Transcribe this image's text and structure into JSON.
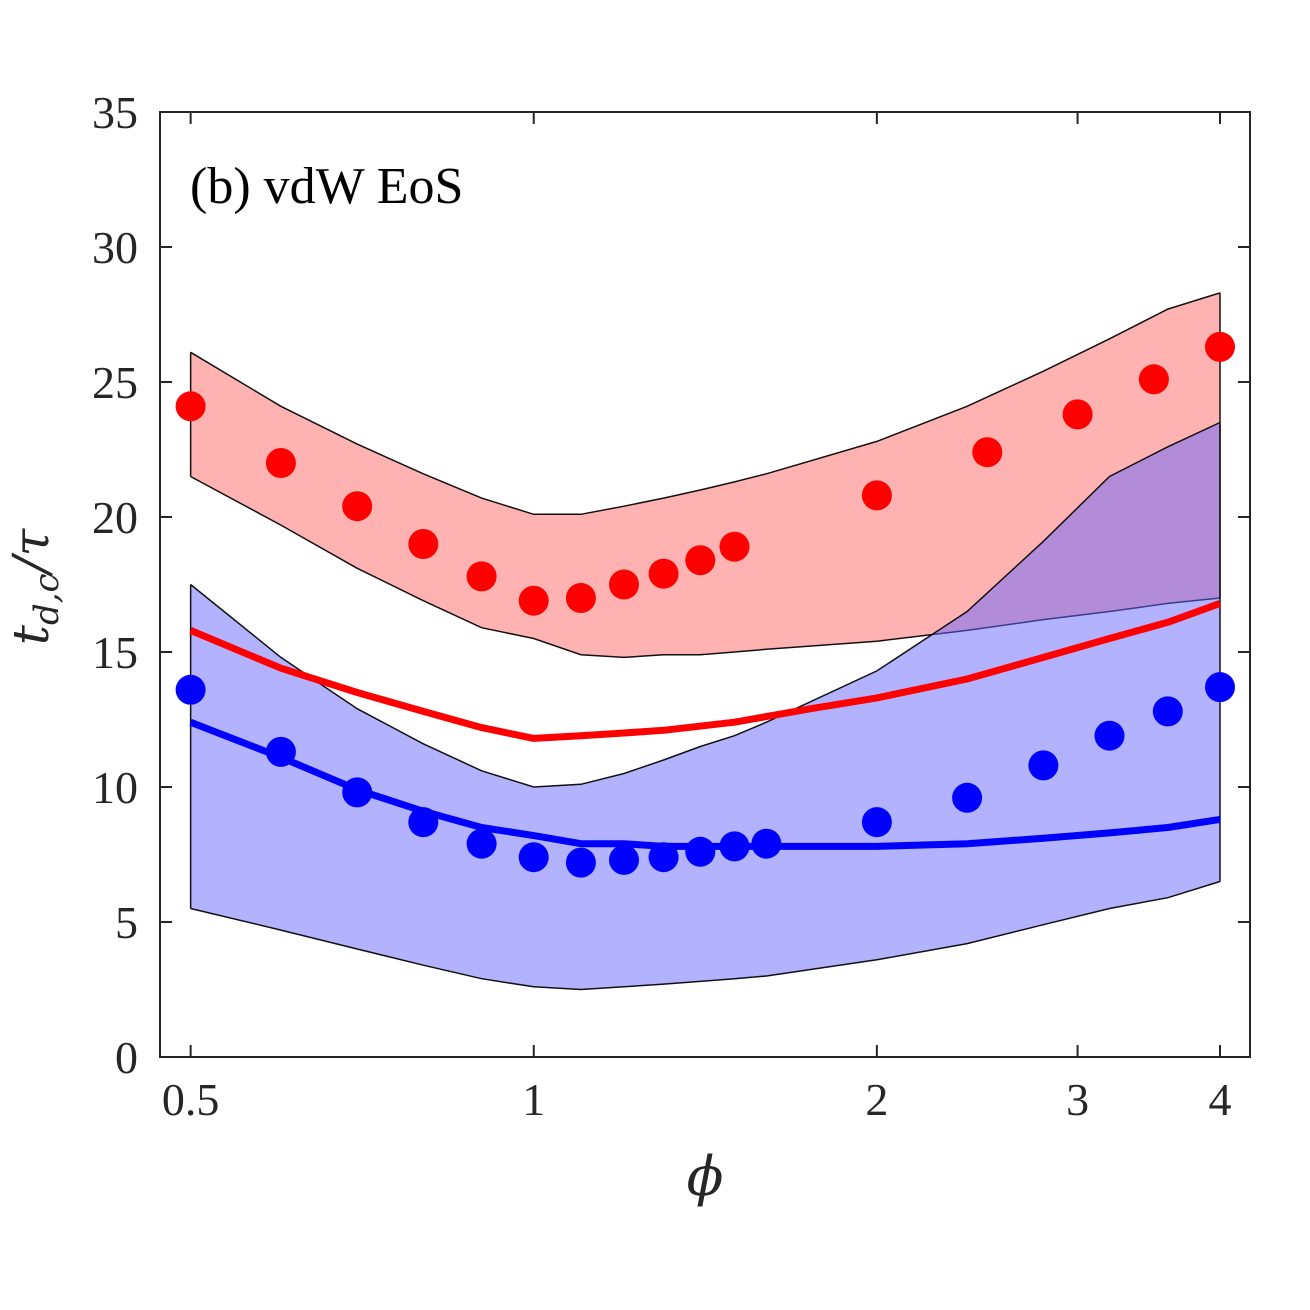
{
  "chart_data": {
    "type": "scatter",
    "annotation": "(b) vdW EoS",
    "xlabel": "ϕ",
    "ylabel_parts": {
      "main": "t",
      "sub": "d,c",
      "tail": "/τ"
    },
    "xscale": "log",
    "xlim": [
      0.47,
      4.25
    ],
    "ylim": [
      0,
      35
    ],
    "xticks": [
      {
        "value": 0.5,
        "label": "0.5"
      },
      {
        "value": 1,
        "label": "1"
      },
      {
        "value": 2,
        "label": "2"
      },
      {
        "value": 3,
        "label": "3"
      },
      {
        "value": 4,
        "label": "4"
      }
    ],
    "yticks": [
      {
        "value": 0,
        "label": "0"
      },
      {
        "value": 5,
        "label": "5"
      },
      {
        "value": 10,
        "label": "10"
      },
      {
        "value": 15,
        "label": "15"
      },
      {
        "value": 20,
        "label": "20"
      },
      {
        "value": 25,
        "label": "25"
      },
      {
        "value": 30,
        "label": "30"
      },
      {
        "value": 35,
        "label": "35"
      }
    ],
    "grid": false,
    "bands": [
      {
        "color": "#ff6666",
        "opacity": 0.5,
        "x": [
          0.5,
          0.6,
          0.7,
          0.8,
          0.9,
          1.0,
          1.1,
          1.2,
          1.3,
          1.4,
          1.5,
          1.6,
          2.0,
          2.4,
          2.8,
          3.2,
          3.6,
          4.0
        ],
        "upper": [
          26.1,
          24.1,
          22.7,
          21.6,
          20.7,
          20.1,
          20.1,
          20.4,
          20.7,
          21.0,
          21.3,
          21.6,
          22.8,
          24.1,
          25.4,
          26.6,
          27.7,
          28.3
        ],
        "lower": [
          21.5,
          19.7,
          18.1,
          16.9,
          15.9,
          15.5,
          14.9,
          14.8,
          14.9,
          14.9,
          15.0,
          15.1,
          15.4,
          15.8,
          16.2,
          16.5,
          16.8,
          17.0
        ]
      },
      {
        "color": "#6666ff",
        "opacity": 0.5,
        "x": [
          0.5,
          0.6,
          0.7,
          0.8,
          0.9,
          1.0,
          1.1,
          1.2,
          1.3,
          1.4,
          1.5,
          1.6,
          2.0,
          2.4,
          2.8,
          3.2,
          3.6,
          4.0
        ],
        "upper": [
          17.5,
          14.8,
          12.9,
          11.6,
          10.6,
          10.0,
          10.1,
          10.5,
          11.0,
          11.5,
          11.9,
          12.4,
          14.3,
          16.5,
          19.1,
          21.5,
          22.6,
          23.5
        ],
        "lower": [
          5.5,
          4.7,
          4.0,
          3.4,
          2.9,
          2.6,
          2.5,
          2.6,
          2.7,
          2.8,
          2.9,
          3.0,
          3.6,
          4.2,
          4.9,
          5.5,
          5.9,
          6.5
        ]
      }
    ],
    "lines": [
      {
        "color": "#ff0000",
        "x": [
          0.5,
          0.6,
          0.7,
          0.8,
          0.9,
          1.0,
          1.1,
          1.2,
          1.3,
          1.5,
          1.75,
          2.0,
          2.4,
          2.8,
          3.2,
          3.6,
          4.0
        ],
        "y": [
          15.8,
          14.4,
          13.5,
          12.8,
          12.2,
          11.8,
          11.9,
          12.0,
          12.1,
          12.4,
          12.9,
          13.3,
          14.0,
          14.8,
          15.5,
          16.1,
          16.8
        ]
      },
      {
        "color": "#0000ff",
        "x": [
          0.5,
          0.6,
          0.7,
          0.8,
          0.9,
          1.0,
          1.1,
          1.2,
          1.3,
          1.5,
          1.75,
          2.0,
          2.4,
          2.8,
          3.2,
          3.6,
          4.0
        ],
        "y": [
          12.4,
          11.1,
          9.9,
          9.1,
          8.5,
          8.2,
          7.9,
          7.9,
          7.8,
          7.8,
          7.8,
          7.8,
          7.9,
          8.1,
          8.3,
          8.5,
          8.8
        ]
      }
    ],
    "scatter": [
      {
        "color": "#ff0000",
        "x": [
          0.5,
          0.6,
          0.7,
          0.8,
          0.9,
          1.0,
          1.1,
          1.2,
          1.3,
          1.4,
          1.5,
          2.0,
          2.5,
          3.0,
          3.5,
          4.0
        ],
        "y": [
          24.1,
          22.0,
          20.4,
          19.0,
          17.8,
          16.9,
          17.0,
          17.5,
          17.9,
          18.4,
          18.9,
          20.8,
          22.4,
          23.8,
          25.1,
          26.3
        ]
      },
      {
        "color": "#0000ff",
        "x": [
          0.5,
          0.6,
          0.7,
          0.8,
          0.9,
          1.0,
          1.1,
          1.2,
          1.3,
          1.4,
          1.5,
          1.6,
          2.0,
          2.4,
          2.8,
          3.2,
          3.6,
          4.0
        ],
        "y": [
          13.6,
          11.3,
          9.8,
          8.7,
          7.9,
          7.4,
          7.2,
          7.3,
          7.4,
          7.6,
          7.8,
          7.9,
          8.7,
          9.6,
          10.8,
          11.9,
          12.8,
          13.7
        ]
      }
    ]
  }
}
